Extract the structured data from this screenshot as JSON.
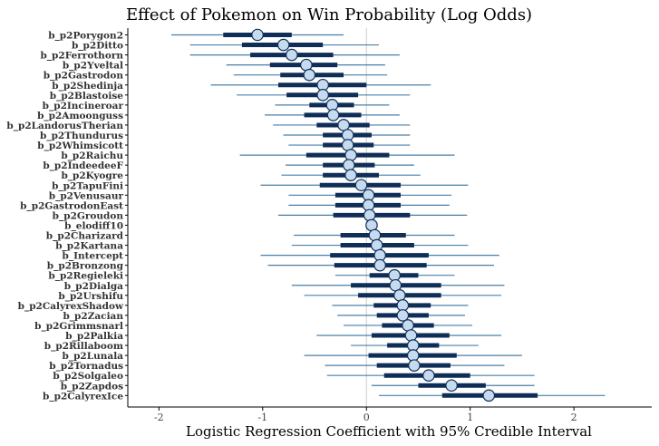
{
  "chart_data": {
    "type": "forest",
    "title": "Effect of Pokemon on Win Probability (Log Odds)",
    "xlabel": "Logistic Regression Coefficient with 95% Credible Interval",
    "ylabel": "",
    "xlim": [
      -2.3,
      2.75
    ],
    "xticks": [
      -2,
      -1,
      0,
      1,
      2
    ],
    "xtick_labels": [
      "-2",
      "-1",
      "0",
      "1",
      "2"
    ],
    "reference_line": 0,
    "colors": {
      "outer_interval": "#4a7fa6",
      "inner_interval": "#0e2d57",
      "point_fill": "#c6dbef",
      "point_stroke": "#0e2d57",
      "reference": "#cccccc"
    },
    "rows": [
      {
        "label": "b_p2Porygon2",
        "estimate": -1.05,
        "inner": [
          -1.38,
          -0.72
        ],
        "outer": [
          -1.88,
          -0.22
        ]
      },
      {
        "label": "b_p2Ditto",
        "estimate": -0.8,
        "inner": [
          -1.2,
          -0.42
        ],
        "outer": [
          -1.7,
          0.12
        ]
      },
      {
        "label": "b_p2Ferrothorn",
        "estimate": -0.72,
        "inner": [
          -1.12,
          -0.32
        ],
        "outer": [
          -1.7,
          0.32
        ]
      },
      {
        "label": "b_p2Yveltal",
        "estimate": -0.58,
        "inner": [
          -0.93,
          -0.28
        ],
        "outer": [
          -1.35,
          0.18
        ]
      },
      {
        "label": "b_p2Gastrodon",
        "estimate": -0.55,
        "inner": [
          -0.83,
          -0.22
        ],
        "outer": [
          -1.28,
          0.2
        ]
      },
      {
        "label": "b_p2Shedinja",
        "estimate": -0.42,
        "inner": [
          -0.85,
          0.0
        ],
        "outer": [
          -1.5,
          0.62
        ]
      },
      {
        "label": "b_p2Blastoise",
        "estimate": -0.42,
        "inner": [
          -0.77,
          -0.08
        ],
        "outer": [
          -1.25,
          0.42
        ]
      },
      {
        "label": "b_p2Incineroar",
        "estimate": -0.33,
        "inner": [
          -0.55,
          -0.12
        ],
        "outer": [
          -0.88,
          0.22
        ]
      },
      {
        "label": "b_p2Amoonguss",
        "estimate": -0.32,
        "inner": [
          -0.6,
          -0.05
        ],
        "outer": [
          -0.98,
          0.32
        ]
      },
      {
        "label": "b_p2LandorusTherian",
        "estimate": -0.22,
        "inner": [
          -0.48,
          0.03
        ],
        "outer": [
          -0.9,
          0.42
        ]
      },
      {
        "label": "b_p2Thundurus",
        "estimate": -0.18,
        "inner": [
          -0.42,
          0.05
        ],
        "outer": [
          -0.8,
          0.42
        ]
      },
      {
        "label": "b_p2Whimsicott",
        "estimate": -0.18,
        "inner": [
          -0.42,
          0.07
        ],
        "outer": [
          -0.75,
          0.42
        ]
      },
      {
        "label": "b_p2Raichu",
        "estimate": -0.15,
        "inner": [
          -0.58,
          0.22
        ],
        "outer": [
          -1.22,
          0.85
        ]
      },
      {
        "label": "b_p2IndeedeeF",
        "estimate": -0.17,
        "inner": [
          -0.42,
          0.08
        ],
        "outer": [
          -0.78,
          0.46
        ]
      },
      {
        "label": "b_p2Kyogre",
        "estimate": -0.15,
        "inner": [
          -0.42,
          0.12
        ],
        "outer": [
          -0.82,
          0.52
        ]
      },
      {
        "label": "b_p2TapuFini",
        "estimate": -0.05,
        "inner": [
          -0.45,
          0.33
        ],
        "outer": [
          -1.02,
          0.98
        ]
      },
      {
        "label": "b_p2Venusaur",
        "estimate": 0.02,
        "inner": [
          -0.3,
          0.33
        ],
        "outer": [
          -0.75,
          0.82
        ]
      },
      {
        "label": "b_p2GastrodonEast",
        "estimate": 0.02,
        "inner": [
          -0.3,
          0.33
        ],
        "outer": [
          -0.75,
          0.8
        ]
      },
      {
        "label": "b_p2Groudon",
        "estimate": 0.03,
        "inner": [
          -0.32,
          0.42
        ],
        "outer": [
          -0.85,
          0.97
        ]
      },
      {
        "label": "b_elodiff10",
        "estimate": 0.05,
        "inner": [
          0.03,
          0.08
        ],
        "outer": [
          0.0,
          0.1
        ]
      },
      {
        "label": "b_p2Charizard",
        "estimate": 0.08,
        "inner": [
          -0.25,
          0.38
        ],
        "outer": [
          -0.7,
          0.85
        ]
      },
      {
        "label": "b_p2Kartana",
        "estimate": 0.1,
        "inner": [
          -0.25,
          0.46
        ],
        "outer": [
          -0.72,
          0.98
        ]
      },
      {
        "label": "b_Intercept",
        "estimate": 0.13,
        "inner": [
          -0.35,
          0.6
        ],
        "outer": [
          -1.02,
          1.28
        ]
      },
      {
        "label": "b_p2Bronzong",
        "estimate": 0.13,
        "inner": [
          -0.31,
          0.58
        ],
        "outer": [
          -0.95,
          1.23
        ]
      },
      {
        "label": "b_p2Regieleki",
        "estimate": 0.27,
        "inner": [
          0.03,
          0.5
        ],
        "outer": [
          -0.3,
          0.85
        ]
      },
      {
        "label": "b_p2Dialga",
        "estimate": 0.28,
        "inner": [
          -0.15,
          0.72
        ],
        "outer": [
          -0.72,
          1.33
        ]
      },
      {
        "label": "b_p2Urshifu",
        "estimate": 0.32,
        "inner": [
          -0.08,
          0.72
        ],
        "outer": [
          -0.6,
          1.3
        ]
      },
      {
        "label": "b_p2CalyrexShadow",
        "estimate": 0.35,
        "inner": [
          0.07,
          0.62
        ],
        "outer": [
          -0.33,
          0.98
        ]
      },
      {
        "label": "b_p2Zacian",
        "estimate": 0.35,
        "inner": [
          0.1,
          0.6
        ],
        "outer": [
          -0.28,
          0.95
        ]
      },
      {
        "label": "b_p2Grimmsnarl",
        "estimate": 0.4,
        "inner": [
          0.15,
          0.65
        ],
        "outer": [
          -0.22,
          1.02
        ]
      },
      {
        "label": "b_p2Palkia",
        "estimate": 0.43,
        "inner": [
          0.05,
          0.8
        ],
        "outer": [
          -0.48,
          1.3
        ]
      },
      {
        "label": "b_p2Rillaboom",
        "estimate": 0.45,
        "inner": [
          0.2,
          0.7
        ],
        "outer": [
          -0.15,
          1.08
        ]
      },
      {
        "label": "b_p2Lunala",
        "estimate": 0.45,
        "inner": [
          0.02,
          0.87
        ],
        "outer": [
          -0.6,
          1.5
        ]
      },
      {
        "label": "b_p2Tornadus",
        "estimate": 0.46,
        "inner": [
          0.1,
          0.81
        ],
        "outer": [
          -0.4,
          1.33
        ]
      },
      {
        "label": "b_p2Solgaleo",
        "estimate": 0.6,
        "inner": [
          0.17,
          1.0
        ],
        "outer": [
          -0.38,
          1.62
        ]
      },
      {
        "label": "b_p2Zapdos",
        "estimate": 0.82,
        "inner": [
          0.5,
          1.15
        ],
        "outer": [
          0.05,
          1.62
        ]
      },
      {
        "label": "b_p2CalyrexIce",
        "estimate": 1.18,
        "inner": [
          0.73,
          1.65
        ],
        "outer": [
          0.12,
          2.3
        ]
      }
    ]
  }
}
